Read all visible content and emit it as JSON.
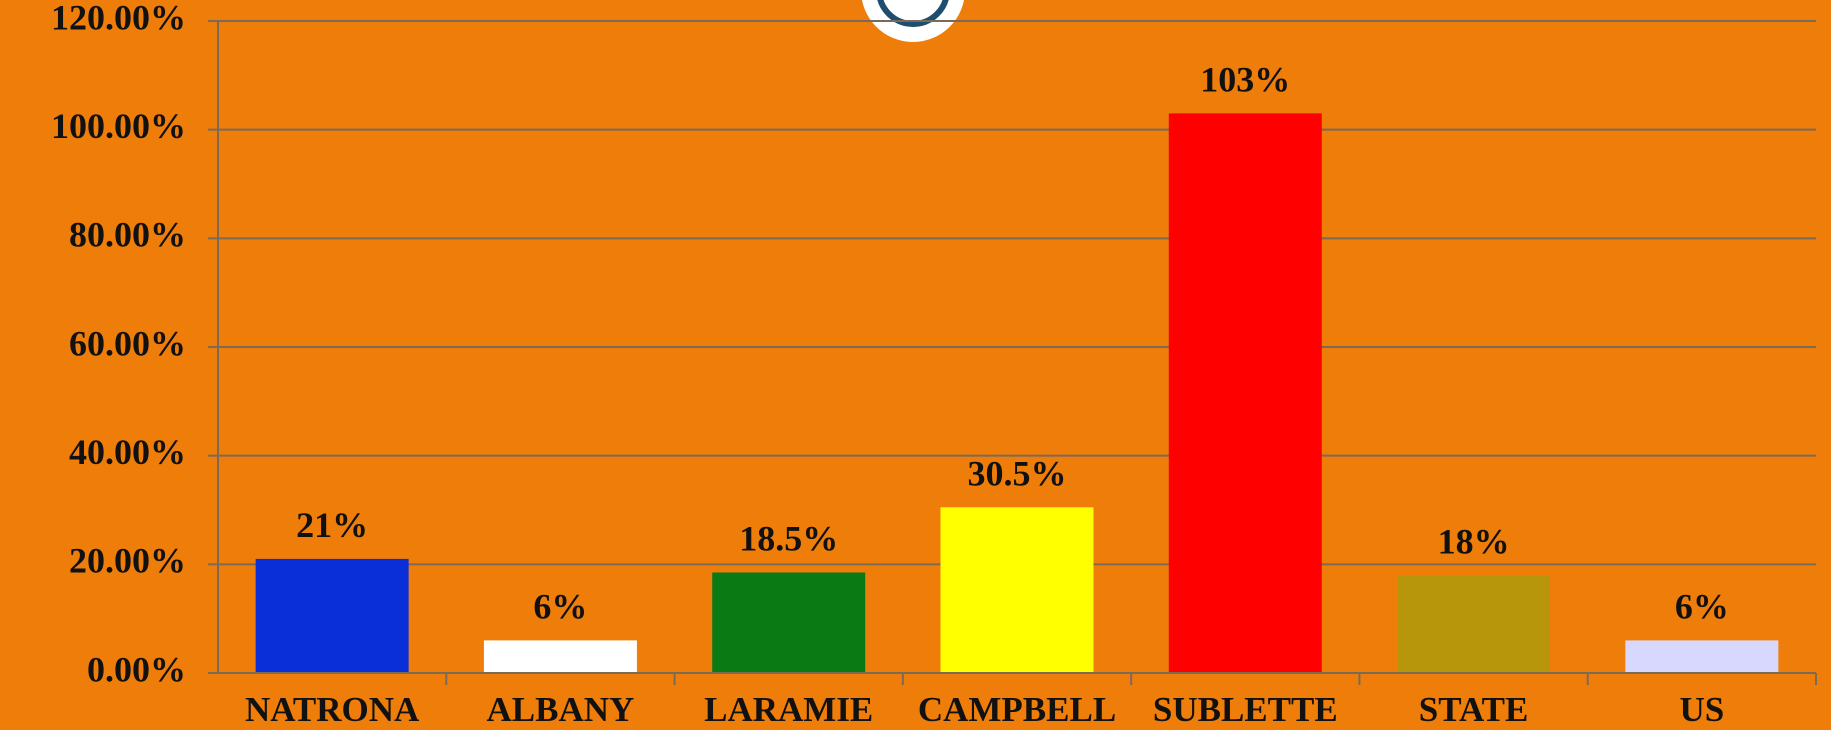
{
  "chart_data": {
    "type": "bar",
    "categories": [
      "NATRONA",
      "ALBANY",
      "LARAMIE",
      "CAMPBELL",
      "SUBLETTE",
      "STATE",
      "US"
    ],
    "values": [
      21,
      6,
      18.5,
      30.5,
      103,
      18,
      6
    ],
    "value_labels": [
      "21%",
      "6%",
      "18.5%",
      "30.5%",
      "103%",
      "18%",
      "6%"
    ],
    "colors": [
      "#0a2fd8",
      "#ffffff",
      "#0a7a14",
      "#ffff00",
      "#ff0000",
      "#b8960c",
      "#d8d8ff"
    ],
    "ylim": [
      0,
      120
    ],
    "yticks": [
      {
        "value": 0,
        "label": "0.00%"
      },
      {
        "value": 20,
        "label": "20.00%"
      },
      {
        "value": 40,
        "label": "40.00%"
      },
      {
        "value": 60,
        "label": "60.00%"
      },
      {
        "value": 80,
        "label": "80.00%"
      },
      {
        "value": 100,
        "label": "100.00%"
      },
      {
        "value": 120,
        "label": "120.00%"
      }
    ],
    "grid": true
  }
}
